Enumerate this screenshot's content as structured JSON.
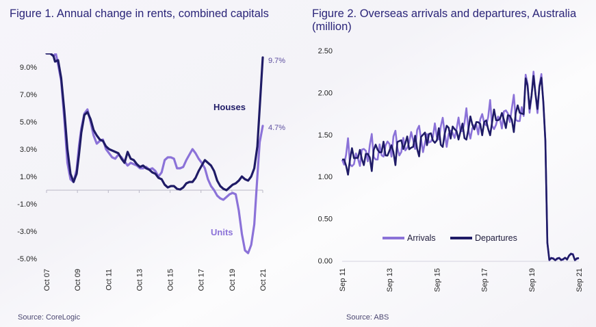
{
  "chart_data": [
    {
      "type": "line",
      "figure_number": "Figure 1.",
      "title": "Annual change in rents, combined capitals",
      "source": "Source: CoreLogic",
      "y_tick_labels": [
        "9.0%",
        "7.0%",
        "5.0%",
        "3.0%",
        "1.0%",
        "-1.0%",
        "-3.0%",
        "-5.0%"
      ],
      "y_ticks": [
        9,
        7,
        5,
        3,
        1,
        -1,
        -3,
        -5
      ],
      "ylim": [
        -5,
        10
      ],
      "xlim": [
        2007.75,
        2021.75
      ],
      "x_tick_labels": [
        "Oct 07",
        "Oct 09",
        "Oct 11",
        "Oct 13",
        "Oct 15",
        "Oct 17",
        "Oct 19",
        "Oct 21"
      ],
      "x_ticks": [
        2007.75,
        2009.75,
        2011.75,
        2013.75,
        2015.75,
        2017.75,
        2019.75,
        2021.75
      ],
      "end_labels": {
        "houses": "9.7%",
        "units": "4.7%"
      },
      "series": [
        {
          "name": "Houses",
          "color": "#1f1b66",
          "x": [
            2007.75,
            2008.0,
            2008.2,
            2008.3,
            2008.5,
            2008.7,
            2008.9,
            2009.1,
            2009.3,
            2009.5,
            2009.7,
            2009.85,
            2010.0,
            2010.2,
            2010.4,
            2010.6,
            2010.8,
            2011.0,
            2011.2,
            2011.4,
            2011.6,
            2011.8,
            2012.0,
            2012.2,
            2012.4,
            2012.6,
            2012.8,
            2013.0,
            2013.2,
            2013.4,
            2013.6,
            2013.8,
            2014.0,
            2014.2,
            2014.4,
            2014.6,
            2014.8,
            2015.0,
            2015.2,
            2015.4,
            2015.6,
            2015.8,
            2016.0,
            2016.2,
            2016.4,
            2016.6,
            2016.8,
            2017.0,
            2017.2,
            2017.4,
            2017.6,
            2017.8,
            2018.0,
            2018.2,
            2018.4,
            2018.6,
            2018.8,
            2019.0,
            2019.2,
            2019.4,
            2019.6,
            2019.8,
            2020.0,
            2020.2,
            2020.4,
            2020.6,
            2020.8,
            2021.0,
            2021.2,
            2021.4,
            2021.55,
            2021.75
          ],
          "values": [
            10.0,
            10.0,
            9.8,
            9.4,
            9.5,
            8.2,
            5.8,
            3.0,
            1.2,
            0.6,
            1.2,
            2.6,
            4.2,
            5.5,
            5.7,
            5.2,
            4.4,
            4.0,
            3.7,
            3.6,
            3.2,
            3.0,
            2.9,
            2.8,
            2.7,
            2.3,
            2.0,
            2.8,
            2.3,
            2.2,
            1.9,
            1.7,
            1.8,
            1.6,
            1.5,
            1.3,
            1.2,
            0.9,
            0.8,
            0.4,
            0.2,
            0.3,
            0.3,
            0.1,
            0.05,
            0.2,
            0.5,
            0.6,
            0.6,
            0.9,
            1.4,
            1.8,
            2.2,
            2.0,
            1.8,
            1.4,
            0.7,
            0.3,
            0.1,
            0.0,
            0.2,
            0.4,
            0.5,
            0.7,
            1.0,
            0.8,
            0.7,
            1.0,
            1.6,
            3.2,
            6.0,
            9.7
          ]
        },
        {
          "name": "Units",
          "color": "#8b72d8",
          "x": [
            2007.75,
            2008.0,
            2008.2,
            2008.35,
            2008.5,
            2008.7,
            2008.9,
            2009.1,
            2009.3,
            2009.5,
            2009.7,
            2009.85,
            2010.0,
            2010.2,
            2010.4,
            2010.6,
            2010.8,
            2011.0,
            2011.2,
            2011.4,
            2011.6,
            2011.8,
            2012.0,
            2012.2,
            2012.4,
            2012.6,
            2012.8,
            2013.0,
            2013.2,
            2013.4,
            2013.6,
            2013.8,
            2014.0,
            2014.2,
            2014.4,
            2014.6,
            2014.8,
            2015.0,
            2015.2,
            2015.4,
            2015.6,
            2015.8,
            2016.0,
            2016.2,
            2016.4,
            2016.6,
            2016.8,
            2017.0,
            2017.2,
            2017.4,
            2017.6,
            2017.8,
            2018.0,
            2018.2,
            2018.4,
            2018.6,
            2018.8,
            2019.0,
            2019.2,
            2019.4,
            2019.6,
            2019.8,
            2020.0,
            2020.2,
            2020.4,
            2020.6,
            2020.8,
            2021.0,
            2021.2,
            2021.4,
            2021.55,
            2021.75
          ],
          "values": [
            10.0,
            10.0,
            9.8,
            10.0,
            9.2,
            8.0,
            5.2,
            2.0,
            0.8,
            0.6,
            1.5,
            3.2,
            4.5,
            5.6,
            5.9,
            5.0,
            4.0,
            3.4,
            3.6,
            3.7,
            3.0,
            2.7,
            2.4,
            2.3,
            2.6,
            2.4,
            2.1,
            1.8,
            2.0,
            1.9,
            1.8,
            1.6,
            1.6,
            1.7,
            1.5,
            1.6,
            1.4,
            1.0,
            1.3,
            2.2,
            2.4,
            2.4,
            2.3,
            1.6,
            1.6,
            1.7,
            2.2,
            2.6,
            3.0,
            2.7,
            2.3,
            2.0,
            1.6,
            0.8,
            0.3,
            0.0,
            -0.4,
            -0.6,
            -0.7,
            -0.5,
            -0.3,
            -0.2,
            -0.3,
            -1.5,
            -3.2,
            -4.4,
            -4.6,
            -4.0,
            -2.5,
            1.0,
            3.5,
            4.7
          ]
        }
      ]
    },
    {
      "type": "line",
      "figure_number": "Figure 2.",
      "title": "Overseas arrivals and departures, Australia (million)",
      "source": "Source: ABS",
      "y_tick_labels": [
        "2.50",
        "2.00",
        "1.50",
        "1.00",
        "0.50",
        "0.00"
      ],
      "y_ticks": [
        2.5,
        2.0,
        1.5,
        1.0,
        0.5,
        0.0
      ],
      "ylim": [
        0,
        2.5
      ],
      "xlim": [
        2011.67,
        2021.67
      ],
      "x_tick_labels": [
        "Sep 11",
        "Sep 13",
        "Sep 15",
        "Sep 17",
        "Sep 19",
        "Sep 21"
      ],
      "x_ticks": [
        2011.67,
        2013.67,
        2015.67,
        2017.67,
        2019.67,
        2021.67
      ],
      "legend": [
        "Arrivals",
        "Departures"
      ],
      "series": [
        {
          "name": "Arrivals",
          "color": "#8b72d8"
        },
        {
          "name": "Departures",
          "color": "#1f1b66"
        }
      ]
    }
  ]
}
